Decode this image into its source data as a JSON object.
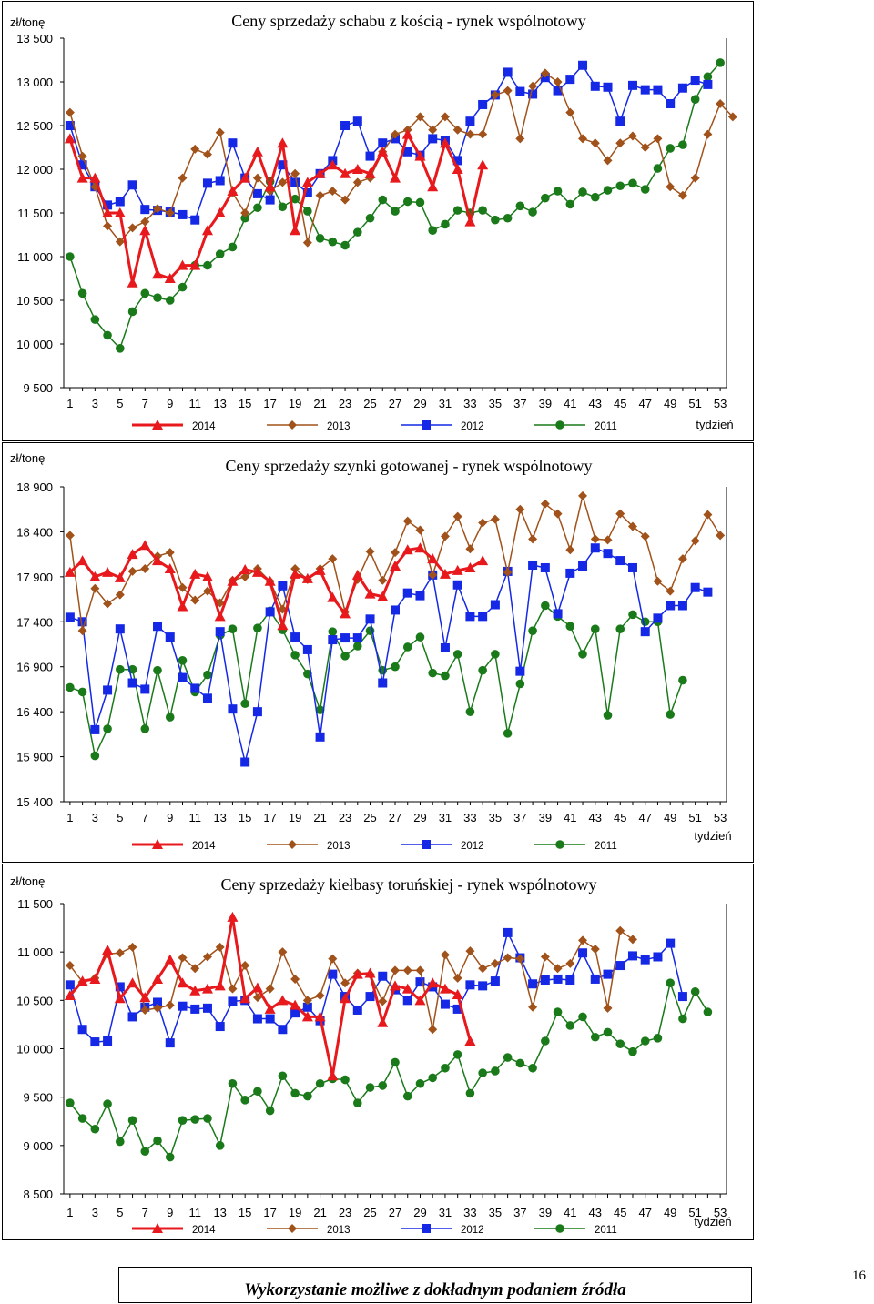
{
  "chart_data": [
    {
      "type": "line",
      "title": "Ceny sprzedaży schabu z kością - rynek wspólnotowy",
      "ylabel": "zł/tonę",
      "xlabel": "tydzień",
      "ylim": [
        9500,
        13500
      ],
      "yticks": [
        9500,
        10000,
        10500,
        11000,
        11500,
        12000,
        12500,
        13000,
        13500
      ],
      "ytick_labels": [
        "9 500",
        "10 000",
        "10 500",
        "11 000",
        "11 500",
        "12 000",
        "12 500",
        "13 000",
        "13 500"
      ],
      "xtick_labels": [
        "1",
        "3",
        "5",
        "7",
        "9",
        "11",
        "13",
        "15",
        "17",
        "19",
        "21",
        "23",
        "25",
        "27",
        "29",
        "31",
        "33",
        "35",
        "37",
        "39",
        "41",
        "43",
        "45",
        "47",
        "49",
        "51",
        "53"
      ],
      "legend_position": "bottom",
      "series": [
        {
          "name": "2014",
          "color": "#e8191c",
          "marker": "triangle",
          "values": [
            12350,
            11900,
            11900,
            11500,
            11500,
            10700,
            11300,
            10800,
            10750,
            10900,
            10900,
            11300,
            11500,
            11750,
            11900,
            12200,
            11800,
            12300,
            11300,
            11850,
            11950,
            12050,
            11950,
            12000,
            11950,
            12200,
            11900,
            12400,
            12150,
            11800,
            12300,
            12000,
            11400,
            12050
          ]
        },
        {
          "name": "2013",
          "color": "#a0521a",
          "marker": "diamond",
          "values": [
            12650,
            12150,
            11800,
            11350,
            11170,
            11330,
            11400,
            11550,
            11500,
            11900,
            12230,
            12170,
            12420,
            11730,
            11500,
            11900,
            11750,
            11850,
            11950,
            11160,
            11700,
            11750,
            11650,
            11850,
            11900,
            12200,
            12400,
            12450,
            12600,
            12450,
            12600,
            12450,
            12400,
            12400,
            12850,
            12900,
            12350,
            12950,
            13100,
            13000,
            12650,
            12350,
            12300,
            12100,
            12300,
            12380,
            12250,
            12350,
            11800,
            11700,
            11900,
            12400,
            12750,
            12600
          ]
        },
        {
          "name": "2012",
          "color": "#1428e6",
          "marker": "square",
          "values": [
            12500,
            12050,
            11800,
            11590,
            11630,
            11820,
            11540,
            11530,
            11510,
            11480,
            11420,
            11840,
            11870,
            12300,
            11900,
            11720,
            11650,
            12050,
            11850,
            11730,
            11950,
            12100,
            12500,
            12550,
            12150,
            12300,
            12350,
            12200,
            12160,
            12350,
            12330,
            12100,
            12550,
            12740,
            12850,
            13110,
            12890,
            12860,
            13050,
            12900,
            13030,
            13190,
            12950,
            12940,
            12550,
            12960,
            12910,
            12910,
            12750,
            12930,
            13020,
            12970
          ]
        },
        {
          "name": "2011",
          "color": "#1a7a1a",
          "marker": "circle",
          "values": [
            11000,
            10580,
            10280,
            10100,
            9950,
            10370,
            10580,
            10530,
            10500,
            10650,
            10900,
            10900,
            11030,
            11110,
            11440,
            11560,
            11860,
            11570,
            11660,
            11520,
            11210,
            11170,
            11130,
            11280,
            11440,
            11650,
            11520,
            11630,
            11620,
            11300,
            11370,
            11530,
            11500,
            11530,
            11420,
            11440,
            11580,
            11510,
            11670,
            11750,
            11600,
            11740,
            11680,
            11760,
            11810,
            11840,
            11770,
            12010,
            12240,
            12280,
            12800,
            13060,
            13220
          ]
        }
      ]
    },
    {
      "type": "line",
      "title": "Ceny sprzedaży szynki gotowanej - rynek wspólnotowy",
      "ylabel": "zł/tonę",
      "xlabel": "tydzień",
      "ylim": [
        15400,
        18900
      ],
      "yticks": [
        15400,
        15900,
        16400,
        16900,
        17400,
        17900,
        18400,
        18900
      ],
      "ytick_labels": [
        "15 400",
        "15 900",
        "16 400",
        "16 900",
        "17 400",
        "17 900",
        "18 400",
        "18 900"
      ],
      "xtick_labels": [
        "1",
        "3",
        "5",
        "7",
        "9",
        "11",
        "13",
        "15",
        "17",
        "19",
        "21",
        "23",
        "25",
        "27",
        "29",
        "31",
        "33",
        "35",
        "37",
        "39",
        "41",
        "43",
        "45",
        "47",
        "49",
        "51",
        "53"
      ],
      "legend_position": "bottom",
      "series": [
        {
          "name": "2014",
          "color": "#e8191c",
          "marker": "triangle",
          "values": [
            17950,
            18080,
            17900,
            17950,
            17890,
            18150,
            18250,
            18080,
            17990,
            17570,
            17930,
            17900,
            17460,
            17850,
            17980,
            17950,
            17850,
            17360,
            17930,
            17880,
            17970,
            17670,
            17490,
            17920,
            17710,
            17680,
            18020,
            18200,
            18220,
            18100,
            17930,
            17970,
            18000,
            18080
          ]
        },
        {
          "name": "2013",
          "color": "#a0521a",
          "marker": "diamond",
          "values": [
            18360,
            17300,
            17770,
            17600,
            17700,
            17960,
            17990,
            18130,
            18170,
            17780,
            17640,
            17740,
            17610,
            17860,
            17900,
            17990,
            17850,
            17540,
            17990,
            17870,
            17990,
            18100,
            17510,
            17870,
            18180,
            17860,
            18170,
            18520,
            18420,
            17920,
            18350,
            18570,
            18210,
            18500,
            18540,
            17950,
            18650,
            18320,
            18710,
            18600,
            18200,
            18800,
            18320,
            18310,
            18600,
            18460,
            18350,
            17850,
            17740,
            18100,
            18300,
            18590,
            18360
          ]
        },
        {
          "name": "2012",
          "color": "#1428e6",
          "marker": "square",
          "values": [
            17450,
            17400,
            16200,
            16640,
            17320,
            16720,
            16650,
            17350,
            17230,
            16780,
            16660,
            16550,
            17290,
            16430,
            15840,
            16400,
            17510,
            17800,
            17230,
            17090,
            16120,
            17200,
            17220,
            17220,
            17430,
            16720,
            17530,
            17720,
            17690,
            17920,
            17110,
            17810,
            17460,
            17460,
            17590,
            17960,
            16850,
            18030,
            18000,
            17490,
            17940,
            18020,
            18220,
            18160,
            18080,
            18000,
            17290,
            17440,
            17580,
            17580,
            17780,
            17730
          ]
        },
        {
          "name": "2011",
          "color": "#1a7a1a",
          "marker": "circle",
          "values": [
            16670,
            16620,
            15910,
            16210,
            16870,
            16870,
            16210,
            16860,
            16340,
            16970,
            16620,
            16810,
            17250,
            17320,
            16490,
            17330,
            17520,
            17310,
            17030,
            16820,
            16420,
            17290,
            17020,
            17130,
            17300,
            16860,
            16900,
            17120,
            17230,
            16830,
            16800,
            17040,
            16400,
            16860,
            17040,
            16160,
            16710,
            17300,
            17580,
            17460,
            17350,
            17040,
            17320,
            16360,
            17320,
            17480,
            17400,
            17400,
            16370,
            16750
          ]
        }
      ]
    },
    {
      "type": "line",
      "title": "Ceny sprzedaży kiełbasy toruńskiej - rynek wspólnotowy",
      "ylabel": "zł/tonę",
      "xlabel": "tydzień",
      "ylim": [
        8500,
        11500
      ],
      "yticks": [
        8500,
        9000,
        9500,
        10000,
        10500,
        11000,
        11500
      ],
      "ytick_labels": [
        "8 500",
        "9 000",
        "9 500",
        "10 000",
        "10 500",
        "11 000",
        "11 500"
      ],
      "xtick_labels": [
        "1",
        "3",
        "5",
        "7",
        "9",
        "11",
        "13",
        "15",
        "17",
        "19",
        "21",
        "23",
        "25",
        "27",
        "29",
        "31",
        "33",
        "35",
        "37",
        "39",
        "41",
        "43",
        "45",
        "47",
        "49",
        "51",
        "53"
      ],
      "legend_position": "bottom",
      "series": [
        {
          "name": "2014",
          "color": "#e8191c",
          "marker": "triangle",
          "values": [
            10550,
            10700,
            10720,
            11020,
            10520,
            10680,
            10530,
            10720,
            10920,
            10680,
            10600,
            10620,
            10650,
            11360,
            10520,
            10630,
            10410,
            10500,
            10450,
            10330,
            10330,
            9720,
            10520,
            10770,
            10780,
            10270,
            10650,
            10620,
            10500,
            10680,
            10620,
            10560,
            10080
          ]
        },
        {
          "name": "2013",
          "color": "#a0521a",
          "marker": "diamond",
          "values": [
            10860,
            10690,
            10730,
            10980,
            10990,
            11050,
            10400,
            10420,
            10450,
            10940,
            10830,
            10950,
            11050,
            10620,
            10860,
            10530,
            10620,
            11000,
            10720,
            10500,
            10550,
            10930,
            10680,
            10780,
            10770,
            10490,
            10810,
            10810,
            10810,
            10200,
            10970,
            10730,
            11010,
            10830,
            10880,
            10940,
            10930,
            10430,
            10950,
            10830,
            10880,
            11120,
            11030,
            10420,
            11220,
            11130
          ]
        },
        {
          "name": "2012",
          "color": "#1428e6",
          "marker": "square",
          "values": [
            10660,
            10200,
            10070,
            10080,
            10640,
            10330,
            10430,
            10480,
            10060,
            10440,
            10410,
            10420,
            10230,
            10490,
            10500,
            10310,
            10310,
            10200,
            10370,
            10430,
            10290,
            10770,
            10540,
            10400,
            10540,
            10750,
            10610,
            10500,
            10690,
            10640,
            10460,
            10410,
            10660,
            10650,
            10700,
            11200,
            10940,
            10670,
            10710,
            10720,
            10710,
            10990,
            10720,
            10770,
            10860,
            10960,
            10920,
            10950,
            11090,
            10540
          ]
        },
        {
          "name": "2011",
          "color": "#1a7a1a",
          "marker": "circle",
          "values": [
            9440,
            9280,
            9170,
            9430,
            9040,
            9260,
            8940,
            9050,
            8880,
            9260,
            9270,
            9280,
            9000,
            9640,
            9470,
            9560,
            9360,
            9720,
            9540,
            9510,
            9640,
            9690,
            9680,
            9440,
            9600,
            9620,
            9860,
            9510,
            9640,
            9700,
            9800,
            9940,
            9540,
            9750,
            9770,
            9910,
            9850,
            9800,
            10080,
            10380,
            10240,
            10330,
            10120,
            10170,
            10050,
            9970,
            10080,
            10110,
            10680,
            10310,
            10590,
            10380
          ]
        }
      ]
    }
  ],
  "footer": {
    "text": "Wykorzystanie możliwe z dokładnym podaniem źródła",
    "page_number": "16"
  }
}
